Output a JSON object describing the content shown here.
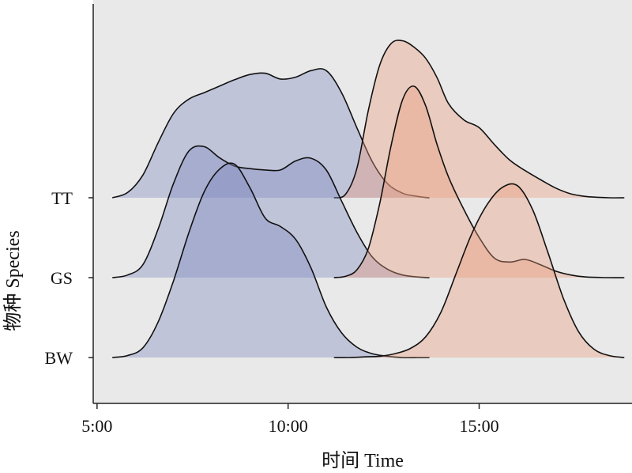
{
  "chart_data": {
    "type": "ridgeline",
    "xlabel": "时间 Time",
    "ylabel": "物种 Species",
    "x_unit": "hours",
    "x_ticks": [
      {
        "value": 5,
        "label": "5:00"
      },
      {
        "value": 10,
        "label": "10:00"
      },
      {
        "value": 15,
        "label": "15:00"
      }
    ],
    "xlim": [
      4.9,
      19.0
    ],
    "categories": [
      "TT",
      "GS",
      "BW"
    ],
    "grid": false,
    "background": "#e9e9e9",
    "colors": {
      "morning": "#7f88c0",
      "afternoon": "#eb9a7b"
    },
    "series": [
      {
        "category": "TT",
        "period": "morning",
        "x": [
          5.4,
          5.8,
          6.2,
          6.6,
          7.0,
          7.4,
          7.8,
          8.2,
          8.6,
          9.0,
          9.4,
          9.8,
          10.2,
          10.6,
          11.0,
          11.4,
          11.8,
          12.2,
          12.6,
          13.0,
          13.4,
          13.7
        ],
        "density": [
          0.0,
          0.08,
          0.35,
          0.85,
          1.3,
          1.52,
          1.62,
          1.72,
          1.82,
          1.9,
          1.92,
          1.83,
          1.86,
          1.96,
          1.96,
          1.62,
          1.08,
          0.56,
          0.22,
          0.07,
          0.02,
          0.0
        ]
      },
      {
        "category": "TT",
        "period": "afternoon",
        "x": [
          11.2,
          11.5,
          11.8,
          12.1,
          12.4,
          12.7,
          13.0,
          13.3,
          13.6,
          13.9,
          14.2,
          14.6,
          15.0,
          15.4,
          15.8,
          16.2,
          16.6,
          17.0,
          17.4,
          17.8,
          18.4,
          18.8
        ],
        "density": [
          0.0,
          0.05,
          0.45,
          1.35,
          2.05,
          2.38,
          2.42,
          2.32,
          2.15,
          1.85,
          1.45,
          1.2,
          1.08,
          0.82,
          0.58,
          0.42,
          0.28,
          0.15,
          0.06,
          0.02,
          0.0,
          0.0
        ]
      },
      {
        "category": "GS",
        "period": "morning",
        "x": [
          5.4,
          5.8,
          6.2,
          6.6,
          7.0,
          7.4,
          7.8,
          8.2,
          8.6,
          9.0,
          9.4,
          9.8,
          10.2,
          10.6,
          11.0,
          11.4,
          11.8,
          12.2,
          12.6,
          13.0,
          13.4,
          13.7
        ],
        "density": [
          0.0,
          0.04,
          0.2,
          0.75,
          1.45,
          1.95,
          2.02,
          1.85,
          1.72,
          1.68,
          1.66,
          1.66,
          1.8,
          1.84,
          1.66,
          1.18,
          0.7,
          0.32,
          0.13,
          0.04,
          0.01,
          0.0
        ]
      },
      {
        "category": "GS",
        "period": "afternoon",
        "x": [
          11.2,
          11.5,
          11.8,
          12.1,
          12.4,
          12.7,
          13.0,
          13.3,
          13.6,
          13.9,
          14.2,
          14.6,
          15.0,
          15.4,
          15.8,
          16.2,
          16.6,
          17.0,
          17.4,
          17.8,
          18.4,
          18.8
        ],
        "density": [
          0.0,
          0.02,
          0.12,
          0.45,
          1.15,
          2.05,
          2.75,
          2.95,
          2.65,
          2.05,
          1.55,
          1.05,
          0.62,
          0.3,
          0.24,
          0.28,
          0.2,
          0.1,
          0.04,
          0.01,
          0.0,
          0.0
        ]
      },
      {
        "category": "BW",
        "period": "morning",
        "x": [
          5.4,
          5.8,
          6.2,
          6.6,
          7.0,
          7.4,
          7.8,
          8.2,
          8.6,
          9.0,
          9.4,
          9.8,
          10.2,
          10.6,
          11.0,
          11.4,
          11.8,
          12.2,
          12.6,
          13.0,
          13.4,
          13.7
        ],
        "density": [
          0.0,
          0.03,
          0.15,
          0.55,
          1.18,
          1.92,
          2.55,
          2.9,
          2.98,
          2.62,
          2.15,
          2.02,
          1.82,
          1.38,
          0.78,
          0.38,
          0.16,
          0.06,
          0.02,
          0.0,
          0.0,
          0.0
        ]
      },
      {
        "category": "BW",
        "period": "afternoon",
        "x": [
          11.2,
          11.6,
          12.0,
          12.4,
          12.8,
          13.2,
          13.6,
          14.0,
          14.4,
          14.8,
          15.2,
          15.6,
          16.0,
          16.4,
          16.8,
          17.2,
          17.6,
          18.0,
          18.4,
          18.8
        ],
        "density": [
          0.0,
          0.0,
          0.01,
          0.02,
          0.06,
          0.14,
          0.32,
          0.7,
          1.3,
          1.9,
          2.35,
          2.62,
          2.65,
          2.28,
          1.62,
          0.92,
          0.4,
          0.13,
          0.03,
          0.0
        ]
      }
    ]
  }
}
